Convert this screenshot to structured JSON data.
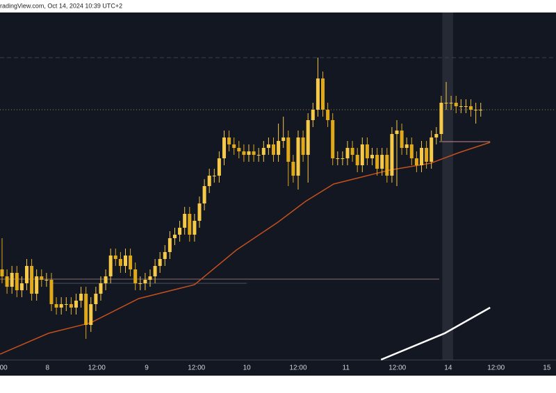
{
  "chart_data": {
    "type": "candlestick",
    "source": "radingView.com, Oct 14, 2024 10:39 UTC+2",
    "xlim": [
      -0.42,
      112.25
    ],
    "ylim": [
      0,
      100
    ],
    "xticks": [
      {
        "value": 0.3,
        "label": "00"
      },
      {
        "value": 9.2,
        "label": "8"
      },
      {
        "value": 19.2,
        "label": "12:00"
      },
      {
        "value": 29.3,
        "label": "9"
      },
      {
        "value": 39.4,
        "label": "12:00"
      },
      {
        "value": 49.6,
        "label": "10"
      },
      {
        "value": 60,
        "label": "12:00"
      },
      {
        "value": 69.7,
        "label": "11"
      },
      {
        "value": 80.1,
        "label": "12:00"
      },
      {
        "value": 90.4,
        "label": "14"
      },
      {
        "value": 100.1,
        "label": "12:00"
      },
      {
        "value": 110.4,
        "label": "15"
      }
    ],
    "up_color": "#f7c948",
    "down_color": "#e0a91a",
    "open": [
      26,
      24,
      21,
      25,
      20,
      22,
      27,
      19,
      24,
      23,
      23,
      16,
      15,
      16,
      16,
      15,
      17,
      19,
      10,
      16,
      19,
      22,
      24,
      30,
      29,
      27,
      30,
      26,
      22,
      22,
      23,
      24,
      27,
      29,
      31,
      35,
      36,
      38,
      42,
      36,
      40,
      45,
      50,
      53,
      53,
      58,
      64,
      62,
      61,
      60,
      59,
      60,
      59,
      59,
      61,
      62,
      59,
      63,
      64,
      57,
      53,
      64,
      59,
      69,
      72,
      81,
      72,
      69,
      58,
      58,
      58,
      61,
      59,
      56,
      62,
      58,
      59,
      55,
      59,
      53,
      65,
      66,
      61,
      62,
      58,
      56,
      61,
      57,
      64,
      65,
      74,
      74,
      74,
      73,
      73,
      73,
      72,
      72
    ],
    "high": [
      35,
      26,
      27,
      27,
      24,
      29,
      29,
      26,
      26,
      25,
      25,
      18,
      18,
      18,
      18,
      19,
      21,
      21,
      18,
      21,
      24,
      26,
      32,
      32,
      31,
      32,
      32,
      28,
      24,
      25,
      26,
      29,
      31,
      33,
      37,
      38,
      40,
      44,
      44,
      42,
      47,
      52,
      55,
      55,
      60,
      66,
      66,
      64,
      63,
      62,
      62,
      62,
      61,
      63,
      64,
      64,
      68,
      70,
      66,
      59,
      66,
      66,
      71,
      74,
      87,
      83,
      74,
      71,
      60,
      60,
      63,
      63,
      61,
      64,
      64,
      61,
      61,
      61,
      61,
      67,
      69,
      68,
      64,
      64,
      60,
      63,
      63,
      66,
      67,
      76,
      80,
      76,
      76,
      75,
      75,
      75,
      74,
      74
    ],
    "low": [
      22,
      19,
      19,
      18,
      18,
      20,
      17,
      17,
      21,
      21,
      14,
      13,
      13,
      14,
      13,
      13,
      15,
      6,
      8,
      14,
      17,
      20,
      22,
      27,
      25,
      25,
      24,
      20,
      20,
      20,
      21,
      22,
      25,
      27,
      29,
      33,
      34,
      36,
      34,
      34,
      38,
      43,
      48,
      51,
      51,
      56,
      60,
      59,
      58,
      57,
      57,
      57,
      57,
      57,
      59,
      57,
      57,
      61,
      50,
      51,
      49,
      57,
      51,
      67,
      70,
      70,
      67,
      56,
      56,
      56,
      56,
      57,
      54,
      54,
      56,
      56,
      53,
      53,
      51,
      51,
      50,
      59,
      59,
      56,
      54,
      54,
      55,
      55,
      62,
      63,
      72,
      72,
      71,
      71,
      71,
      70,
      68,
      70
    ],
    "close": [
      24,
      21,
      25,
      20,
      22,
      27,
      19,
      24,
      23,
      23,
      16,
      15,
      16,
      16,
      15,
      17,
      19,
      10,
      16,
      19,
      22,
      24,
      30,
      29,
      27,
      30,
      26,
      22,
      22,
      23,
      24,
      27,
      29,
      31,
      35,
      36,
      38,
      42,
      36,
      40,
      45,
      50,
      53,
      53,
      58,
      64,
      62,
      61,
      60,
      59,
      60,
      59,
      59,
      61,
      62,
      59,
      63,
      64,
      57,
      53,
      64,
      59,
      69,
      72,
      81,
      72,
      69,
      58,
      58,
      58,
      61,
      59,
      56,
      62,
      58,
      59,
      55,
      59,
      53,
      65,
      66,
      61,
      62,
      58,
      56,
      61,
      57,
      64,
      65,
      74,
      74,
      74,
      73,
      73,
      73,
      72,
      72,
      72
    ],
    "lines": [
      {
        "color": "#c4501d",
        "x": [
          -0.4,
          9.4,
          17.9,
          27.7,
          39,
          47.5,
          55.9,
          61.5,
          67.2,
          78.5,
          86.9,
          92.5,
          98.9
        ],
        "values": [
          1.6,
          7.6,
          10.6,
          17.6,
          21.6,
          31.6,
          39.6,
          45.6,
          50.6,
          54.6,
          56.6,
          59.6,
          62.6
        ]
      },
      {
        "color": "#ffffff",
        "x": [
          76.8,
          89.7,
          98.9
        ],
        "values": [
          0,
          7.6,
          15
        ]
      }
    ],
    "levels": [
      {
        "value": 87,
        "x": [
          -0.42,
          112.25
        ],
        "color": "#3a3f4c",
        "style": "dashed"
      },
      {
        "value": 72,
        "x": [
          -0.42,
          112.25
        ],
        "color": "#9c8548",
        "style": "dotted"
      },
      {
        "value": 62.8,
        "x": [
          88.6,
          98.9
        ],
        "color": "#c98a8a",
        "style": "solid"
      },
      {
        "value": 23.2,
        "x": [
          -0.42,
          88.6
        ],
        "color": "#8a6e6e",
        "style": "solid"
      },
      {
        "value": 22,
        "x": [
          10.2,
          49.6
        ],
        "color": "#4e525c",
        "style": "solid"
      }
    ],
    "highlight": {
      "x": [
        89.2,
        91.4
      ],
      "color": "#262a35"
    }
  }
}
